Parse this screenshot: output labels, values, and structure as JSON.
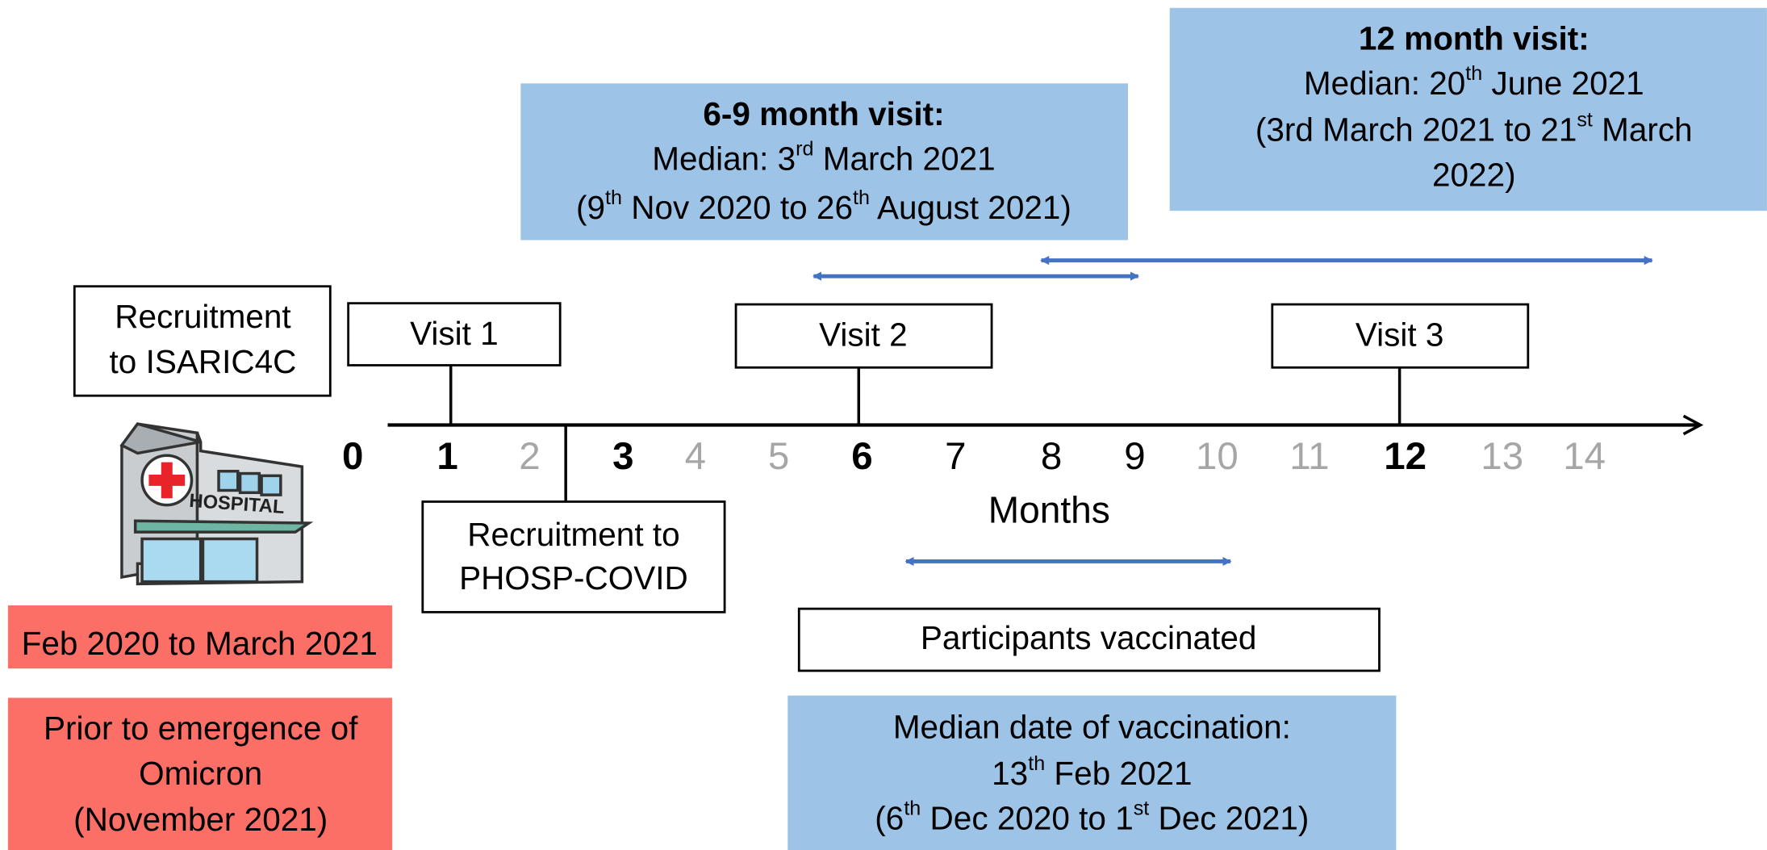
{
  "boxes": [
    {
      "lines": [
        [
          {
            "text": "6-9 month visit:",
            "bold": true
          }
        ],
        [
          {
            "text": "Median: 3"
          },
          {
            "text": "rd",
            "sup": true
          },
          {
            "text": " March 2021"
          }
        ],
        [
          {
            "text": "(9"
          },
          {
            "text": "th",
            "sup": true
          },
          {
            "text": " Nov 2020 to 26"
          },
          {
            "text": "th",
            "sup": true
          },
          {
            "text": " August 2021)"
          }
        ]
      ]
    },
    {
      "lines": [
        [
          {
            "text": "12 month visit:",
            "bold": true
          }
        ],
        [
          {
            "text": "Median: 20"
          },
          {
            "text": "th",
            "sup": true
          },
          {
            "text": " June 2021"
          }
        ],
        [
          {
            "text": "(3rd March 2021 to 21"
          },
          {
            "text": "st",
            "sup": true
          },
          {
            "text": " March"
          }
        ],
        [
          {
            "text": "2022)"
          }
        ]
      ]
    },
    {
      "lines": [
        [
          {
            "text": "Recruitment"
          }
        ],
        [
          {
            "text": "to ISARIC4C"
          }
        ]
      ]
    },
    {
      "lines": [
        [
          {
            "text": "Visit 1"
          }
        ]
      ]
    },
    {
      "lines": [
        [
          {
            "text": "Visit 2"
          }
        ]
      ]
    },
    {
      "lines": [
        [
          {
            "text": "Visit 3"
          }
        ]
      ]
    },
    {
      "lines": [
        [
          {
            "text": "Recruitment to"
          }
        ],
        [
          {
            "text": "PHOSP-COVID"
          }
        ]
      ]
    },
    {
      "lines": [
        [
          {
            "text": "Participants vaccinated"
          }
        ]
      ]
    },
    {
      "lines": [
        [
          {
            "text": "Median date of vaccination:"
          }
        ],
        [
          {
            "text": "13"
          },
          {
            "text": "th",
            "sup": true
          },
          {
            "text": " Feb 2021"
          }
        ],
        [
          {
            "text": "(6"
          },
          {
            "text": "th",
            "sup": true
          },
          {
            "text": " Dec 2020 to 1"
          },
          {
            "text": "st",
            "sup": true
          },
          {
            "text": " Dec 2021)"
          }
        ]
      ]
    },
    {
      "lines": [
        [
          {
            "text": "Feb 2020 to March 2021"
          }
        ]
      ]
    },
    {
      "lines": [
        [
          {
            "text": "Prior to emergence of"
          }
        ],
        [
          {
            "text": "Omicron"
          }
        ],
        [
          {
            "text": "(November 2021)"
          }
        ]
      ]
    }
  ],
  "axis": {
    "label": "Months",
    "ticks": [
      {
        "label": "0",
        "weight": "bold"
      },
      {
        "label": "1",
        "weight": "bold"
      },
      {
        "label": "2",
        "weight": "muted"
      },
      {
        "label": "3",
        "weight": "bold"
      },
      {
        "label": "4",
        "weight": "muted"
      },
      {
        "label": "5",
        "weight": "muted"
      },
      {
        "label": "6",
        "weight": "bold"
      },
      {
        "label": "7",
        "weight": "normal"
      },
      {
        "label": "8",
        "weight": "normal"
      },
      {
        "label": "9",
        "weight": "normal"
      },
      {
        "label": "10",
        "weight": "muted"
      },
      {
        "label": "11",
        "weight": "muted"
      },
      {
        "label": "12",
        "weight": "bold"
      },
      {
        "label": "13",
        "weight": "muted"
      },
      {
        "label": "14",
        "weight": "muted"
      }
    ]
  },
  "hospital_sign": "HOSPITAL"
}
